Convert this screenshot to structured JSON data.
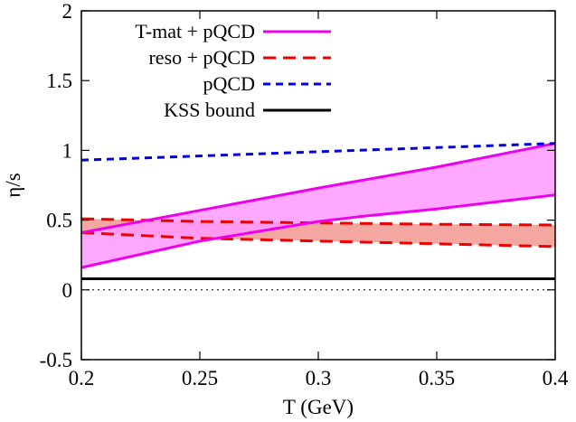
{
  "chart_data": {
    "type": "line",
    "xlabel": "T (GeV)",
    "ylabel": "η/s",
    "xlim": [
      0.2,
      0.4
    ],
    "ylim": [
      -0.5,
      2
    ],
    "xticks": [
      0.2,
      0.25,
      0.3,
      0.35,
      0.4
    ],
    "xtick_labels": [
      "0.2",
      "0.25",
      "0.3",
      "0.35",
      "0.4"
    ],
    "yticks": [
      -0.5,
      0,
      0.5,
      1,
      1.5,
      2
    ],
    "ytick_labels": [
      "-0.5",
      "0",
      "0.5",
      "1",
      "1.5",
      "2"
    ],
    "grid": false,
    "legend_position": "top-left",
    "colors": {
      "tmat": "#ee00ee",
      "tmat_fill": "#ff99ff",
      "reso": "#ee0000",
      "reso_fill": "#f4a6a0",
      "pqcd": "#0000dd",
      "kss": "#000000",
      "zero": "#000000"
    },
    "series": [
      {
        "name": "T-mat + pQCD",
        "style": "solid-band",
        "x": [
          0.2,
          0.25,
          0.3,
          0.32,
          0.35,
          0.4
        ],
        "upper": [
          0.41,
          0.57,
          0.73,
          0.79,
          0.88,
          1.05
        ],
        "lower": [
          0.16,
          0.35,
          0.49,
          0.53,
          0.58,
          0.68
        ]
      },
      {
        "name": "reso + pQCD",
        "style": "dashed-band",
        "x": [
          0.2,
          0.25,
          0.3,
          0.35,
          0.4
        ],
        "upper": [
          0.51,
          0.49,
          0.48,
          0.47,
          0.465
        ],
        "lower": [
          0.41,
          0.37,
          0.35,
          0.33,
          0.31
        ]
      },
      {
        "name": "pQCD",
        "style": "short-dashed",
        "x": [
          0.2,
          0.25,
          0.3,
          0.35,
          0.4
        ],
        "y": [
          0.93,
          0.96,
          0.99,
          1.02,
          1.05
        ]
      },
      {
        "name": "KSS bound",
        "style": "solid",
        "x": [
          0.2,
          0.4
        ],
        "y": [
          0.0796,
          0.0796
        ]
      },
      {
        "name": "",
        "style": "dotted",
        "x": [
          0.2,
          0.4
        ],
        "y": [
          0,
          0
        ]
      }
    ]
  }
}
